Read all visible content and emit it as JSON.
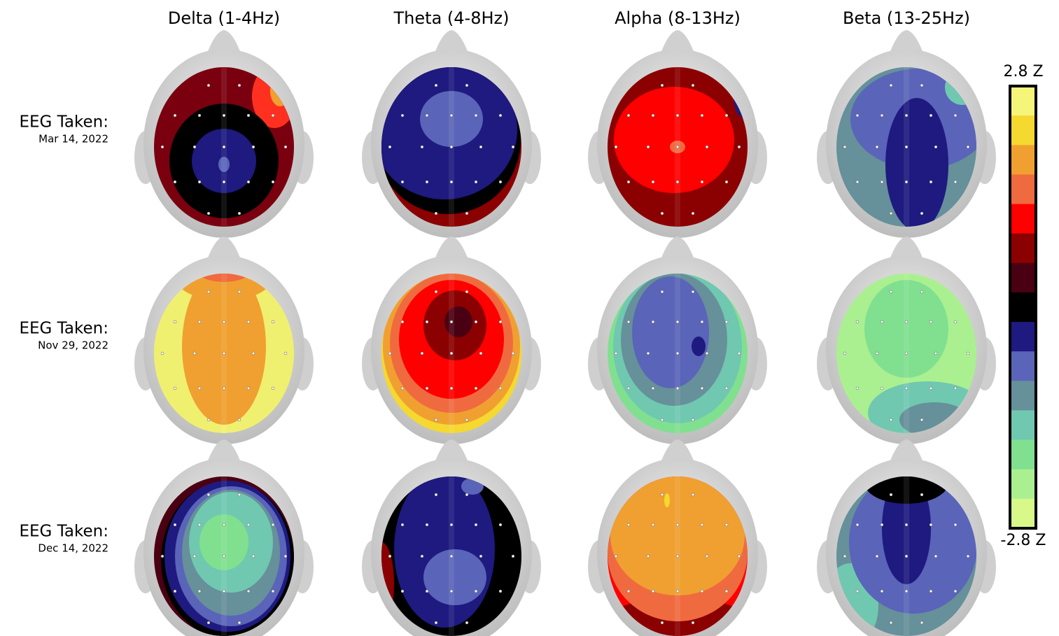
{
  "columns": [
    "Delta (1-4Hz)",
    "Theta (4-8Hz)",
    "Alpha (8-13Hz)",
    "Beta (13-25Hz)"
  ],
  "rows": [
    {
      "label": "EEG Taken:",
      "date": "Mar 14, 2022"
    },
    {
      "label": "EEG Taken:",
      "date": "Nov 29, 2022"
    },
    {
      "label": "EEG Taken:",
      "date": "Dec 14, 2022"
    }
  ],
  "colorbar": {
    "max_label": "2.8 Z",
    "min_label": "-2.8 Z",
    "colors": [
      "#f5f57a",
      "#f5d830",
      "#f0a030",
      "#f06a40",
      "#ff0000",
      "#8b0000",
      "#4a0012",
      "#000000",
      "#1e1a80",
      "#5a64b8",
      "#66909a",
      "#70c8b0",
      "#80e090",
      "#aaf090",
      "#d8f88a"
    ]
  }
}
